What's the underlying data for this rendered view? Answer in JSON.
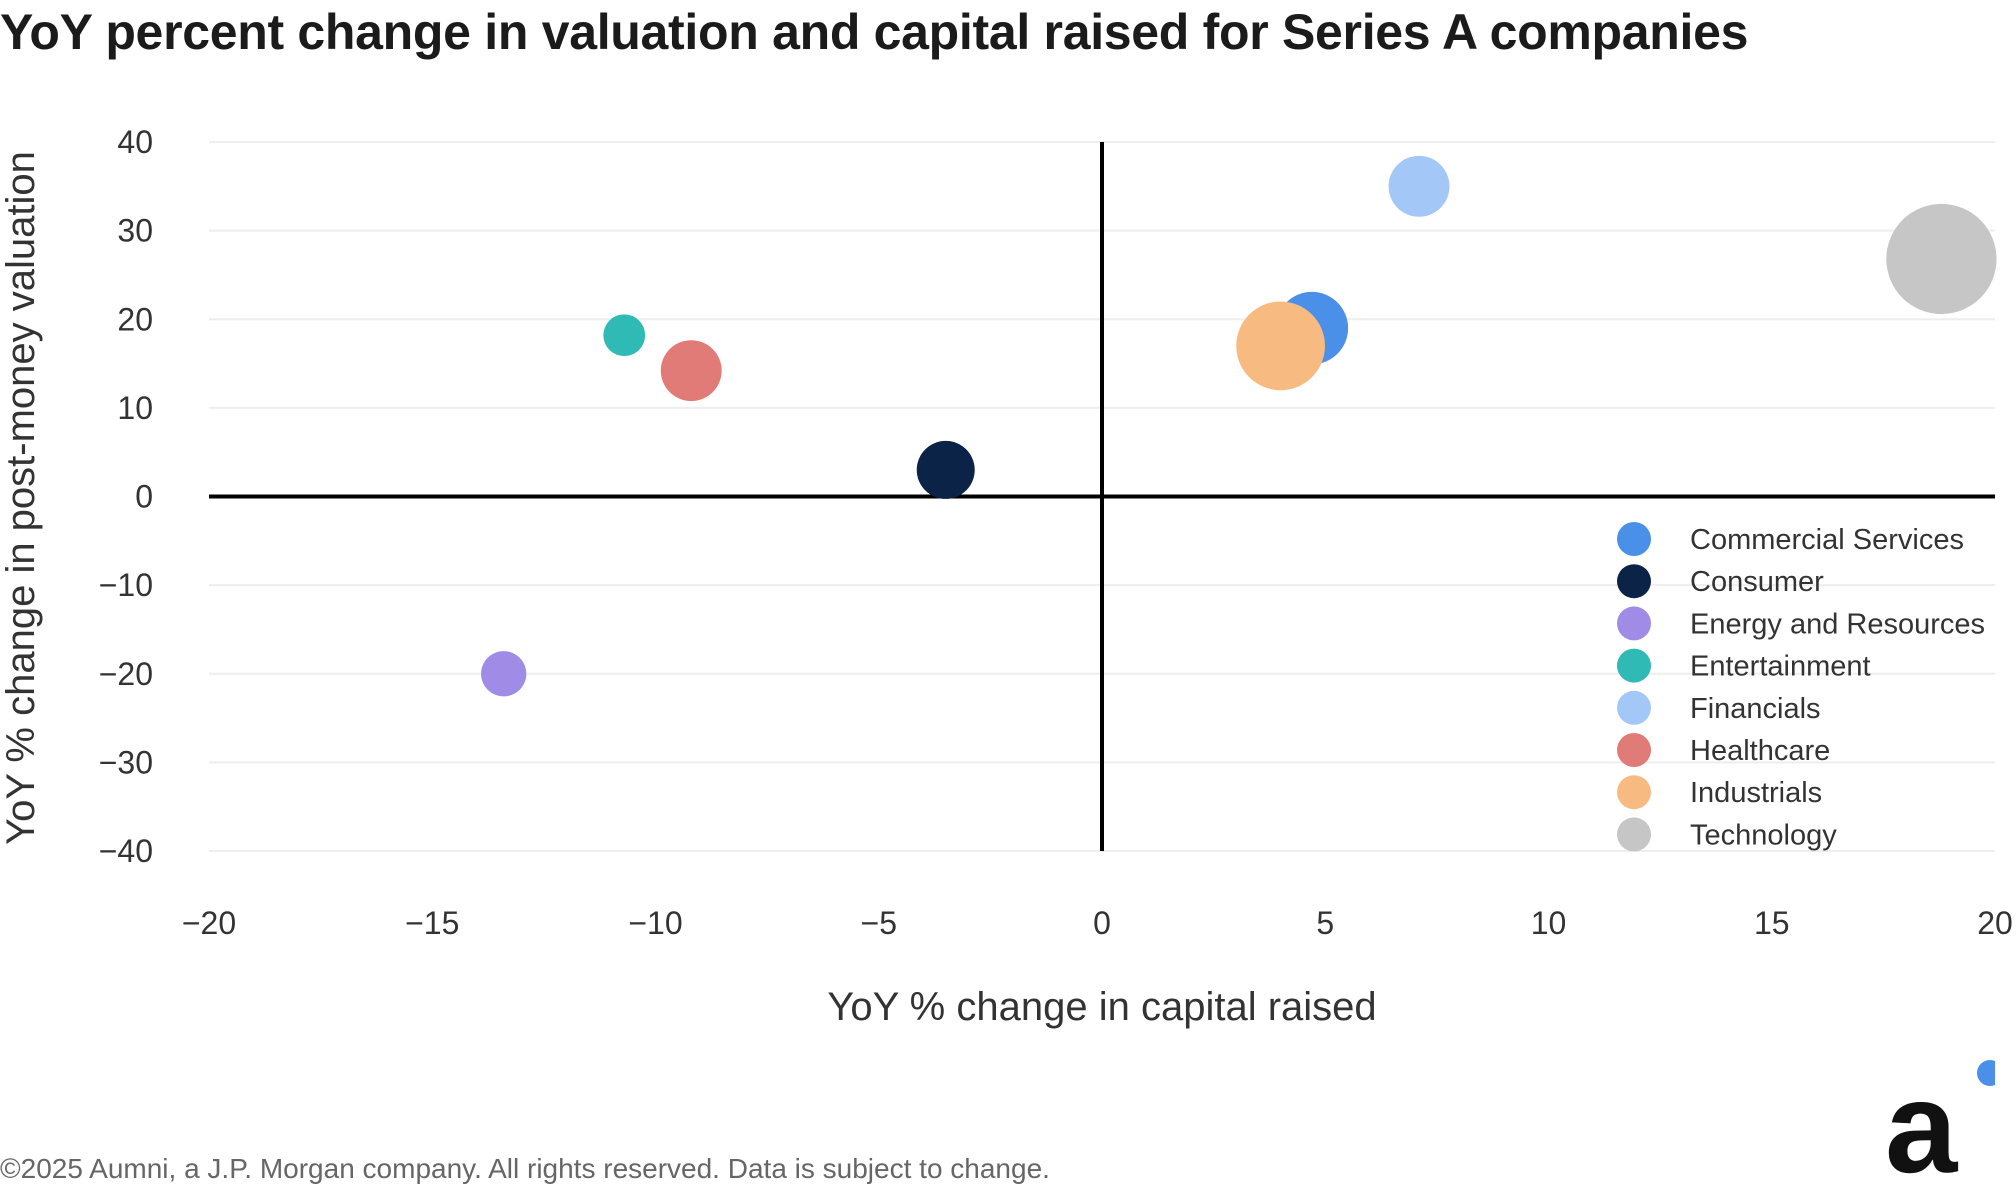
{
  "title": "YoY percent change in valuation and capital raised for Series A companies",
  "footer": "©2025 Aumni, a J.P. Morgan company. All rights reserved. Data is subject to change.",
  "logo": {
    "letter": "a",
    "dot_color": "#4a90e8",
    "letter_color": "#111111"
  },
  "chart_data": {
    "type": "scatter",
    "title": "YoY percent change in valuation and capital raised for Series A companies",
    "xlabel": "YoY % change in capital raised",
    "ylabel": "YoY % change in post-money valuation",
    "xlim": [
      -20,
      20
    ],
    "ylim": [
      -40,
      40
    ],
    "xticks": [
      -20,
      -15,
      -10,
      -5,
      0,
      5,
      10,
      15,
      20
    ],
    "yticks": [
      40,
      30,
      20,
      10,
      0,
      -10,
      -20,
      -30,
      -40
    ],
    "xtick_labels": [
      "−20",
      "−15",
      "−10",
      "−5",
      "0",
      "5",
      "10",
      "15",
      "20"
    ],
    "ytick_labels": [
      "40",
      "30",
      "20",
      "10",
      "0",
      "−10",
      "−20",
      "−30",
      "−40"
    ],
    "grid": "horizontal",
    "zero_lines": true,
    "legend_position": "bottom-right",
    "bubble_sizing": "relative bubble size, estimated",
    "series": [
      {
        "name": "Commercial Services",
        "color": "#4a90e8",
        "x": 4.7,
        "y": 19,
        "size": 1.25
      },
      {
        "name": "Consumer",
        "color": "#0b2347",
        "x": -3.5,
        "y": 3,
        "size": 1.0
      },
      {
        "name": "Energy and Resources",
        "color": "#a08ce6",
        "x": -13.4,
        "y": -20,
        "size": 0.78
      },
      {
        "name": "Entertainment",
        "color": "#2fbab5",
        "x": -10.7,
        "y": 18.2,
        "size": 0.72
      },
      {
        "name": "Financials",
        "color": "#a3c8f7",
        "x": 7.1,
        "y": 35,
        "size": 1.05
      },
      {
        "name": "Healthcare",
        "color": "#e07b78",
        "x": -9.2,
        "y": 14.2,
        "size": 1.05
      },
      {
        "name": "Industrials",
        "color": "#f7bb82",
        "x": 4.0,
        "y": 17,
        "size": 1.53
      },
      {
        "name": "Technology",
        "color": "#c6c6c6",
        "x": 18.8,
        "y": 26.8,
        "size": 1.9
      }
    ]
  }
}
